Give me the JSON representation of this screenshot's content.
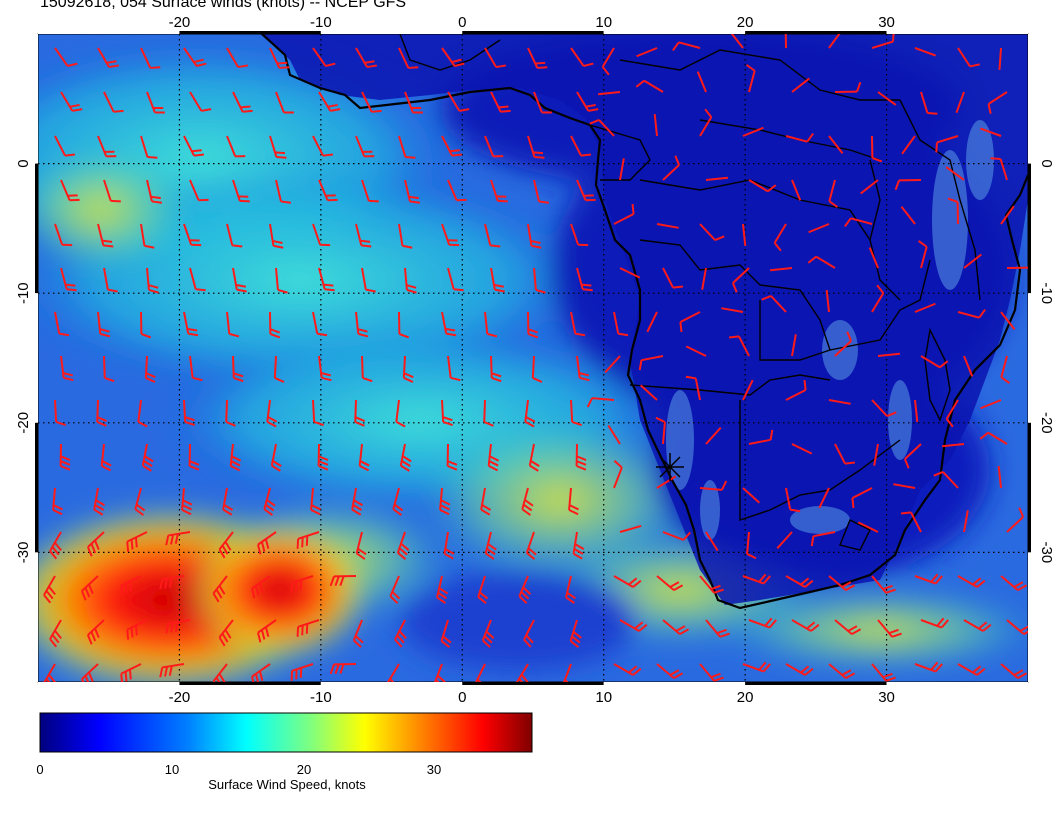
{
  "title": "15092618, 054 Surface winds (knots) -- NCEP GFS",
  "map": {
    "region": "Southern Africa and South Atlantic",
    "lon_range": [
      -30,
      40
    ],
    "lat_range": [
      -40,
      10
    ],
    "lon_ticks": [
      "-20",
      "-10",
      "0",
      "10",
      "20",
      "30"
    ],
    "lat_ticks": [
      "0",
      "-10",
      "-20",
      "-30"
    ],
    "barb_color": "#ff1a1a",
    "land_outline_color": "#000000",
    "marker": "station-cross-icon",
    "wind_field_colors": {
      "calm": "#1010c8",
      "moderate": "#20c8d8",
      "strong": "#e8e020",
      "very_strong": "#e01010"
    }
  },
  "colorbar": {
    "ticks": [
      "0",
      "10",
      "20",
      "30"
    ],
    "range": [
      0,
      37
    ],
    "label": "Surface Wind Speed, knots",
    "colors": [
      "#00007f",
      "#0000ff",
      "#007fff",
      "#00ffff",
      "#7fff7f",
      "#ffff00",
      "#ff7f00",
      "#ff0000",
      "#7f0000"
    ]
  }
}
